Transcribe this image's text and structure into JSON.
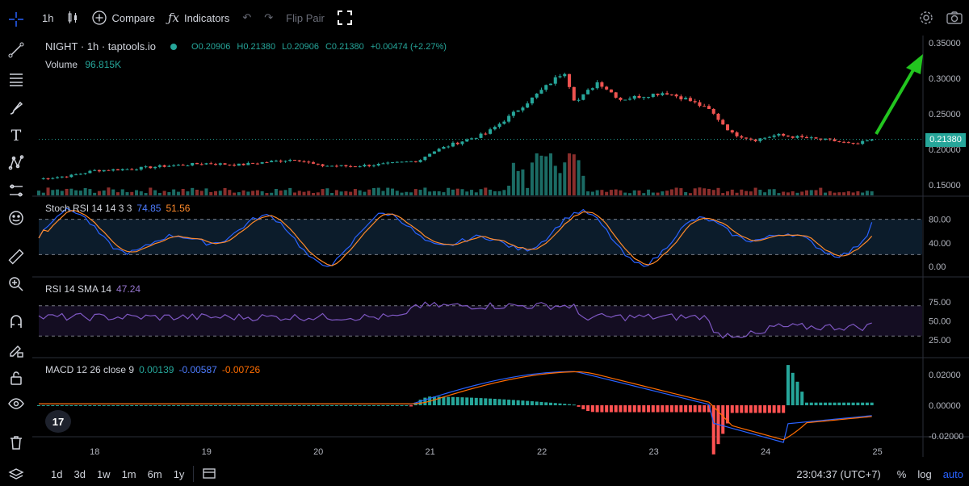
{
  "toolbar": {
    "interval": "1h",
    "compare_label": "Compare",
    "indicators_label": "Indicators",
    "flip_pair_label": "Flip Pair"
  },
  "legend": {
    "symbol": "NIGHT · 1h · taptools.io",
    "open": "O0.20906",
    "high": "H0.21380",
    "low": "L0.20906",
    "close": "C0.21380",
    "change": "+0.00474 (+2.27%)",
    "volume_label": "Volume",
    "volume_value": "96.815K"
  },
  "stoch": {
    "label": "Stoch RSI 14 14 3 3",
    "k": "74.85",
    "d": "51.56"
  },
  "rsi": {
    "label": "RSI 14 SMA 14",
    "value": "47.24"
  },
  "macd": {
    "label": "MACD 12 26 close 9",
    "hist": "0.00139",
    "macd": "-0.00587",
    "signal": "-0.00726"
  },
  "price_axis": {
    "ticks": [
      "0.35000",
      "0.30000",
      "0.25000",
      "0.20000",
      "0.15000"
    ],
    "current": "0.21380"
  },
  "stoch_axis": [
    "80.00",
    "40.00",
    "0.00"
  ],
  "rsi_axis": [
    "75.00",
    "50.00",
    "25.00"
  ],
  "macd_axis": [
    "0.02000",
    "0.00000",
    "-0.02000"
  ],
  "time_axis": [
    "18",
    "19",
    "20",
    "21",
    "22",
    "23",
    "24",
    "25"
  ],
  "bottombar": {
    "ranges": [
      "1d",
      "3d",
      "1w",
      "1m",
      "6m",
      "1y"
    ],
    "clock": "23:04:37 (UTC+7)",
    "percent": "%",
    "log": "log",
    "auto": "auto"
  },
  "colors": {
    "up": "#26a69a",
    "down": "#ef5350",
    "arrow": "#22c51f",
    "stoch_k": "#2962ff",
    "stoch_d": "#ff8a2b",
    "rsi": "#7e57c2",
    "macd": "#2962ff",
    "signal": "#ff6d00"
  },
  "chart_data": {
    "type": "candlestick",
    "x_ticks": [
      "18",
      "19",
      "20",
      "21",
      "22",
      "23",
      "24",
      "25"
    ],
    "close_anchors": [
      [
        17.5,
        0.158
      ],
      [
        17.8,
        0.163
      ],
      [
        18.0,
        0.17
      ],
      [
        18.3,
        0.172
      ],
      [
        18.6,
        0.176
      ],
      [
        19.0,
        0.18
      ],
      [
        19.3,
        0.178
      ],
      [
        19.6,
        0.183
      ],
      [
        19.8,
        0.186
      ],
      [
        20.0,
        0.177
      ],
      [
        20.3,
        0.176
      ],
      [
        20.6,
        0.179
      ],
      [
        20.9,
        0.184
      ],
      [
        21.0,
        0.195
      ],
      [
        21.2,
        0.207
      ],
      [
        21.5,
        0.222
      ],
      [
        21.7,
        0.245
      ],
      [
        21.9,
        0.27
      ],
      [
        22.05,
        0.29
      ],
      [
        22.2,
        0.31
      ],
      [
        22.3,
        0.265
      ],
      [
        22.5,
        0.295
      ],
      [
        22.7,
        0.27
      ],
      [
        22.9,
        0.275
      ],
      [
        23.1,
        0.28
      ],
      [
        23.3,
        0.27
      ],
      [
        23.5,
        0.255
      ],
      [
        23.7,
        0.222
      ],
      [
        23.9,
        0.213
      ],
      [
        24.1,
        0.22
      ],
      [
        24.4,
        0.215
      ],
      [
        24.6,
        0.212
      ],
      [
        24.8,
        0.206
      ],
      [
        24.95,
        0.2138
      ]
    ],
    "ylim": [
      0.135,
      0.36
    ]
  }
}
